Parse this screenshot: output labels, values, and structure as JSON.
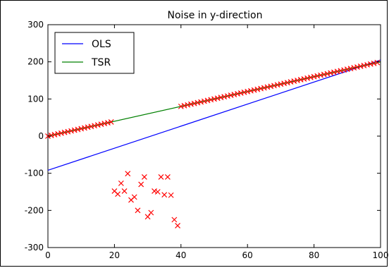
{
  "chart_data": {
    "type": "line",
    "title": "Noise in y-direction",
    "xlabel": "",
    "ylabel": "",
    "xlim": [
      0,
      100
    ],
    "ylim": [
      -300,
      300
    ],
    "xticks": [
      0,
      20,
      40,
      60,
      80,
      100
    ],
    "yticks": [
      -300,
      -200,
      -100,
      0,
      100,
      200,
      300
    ],
    "grid": false,
    "legend_position": "top-left",
    "lines": [
      {
        "name": "OLS",
        "color": "#0000ff",
        "x": [
          0,
          100
        ],
        "y": [
          -92,
          205
        ]
      },
      {
        "name": "TSR",
        "color": "#008000",
        "x": [
          0,
          100
        ],
        "y": [
          0,
          200
        ]
      }
    ],
    "scatter": {
      "marker": "x",
      "color": "#ff0000",
      "points": [
        [
          0,
          0
        ],
        [
          1,
          2
        ],
        [
          2,
          4
        ],
        [
          3,
          6
        ],
        [
          4,
          8
        ],
        [
          5,
          10
        ],
        [
          6,
          12
        ],
        [
          7,
          14
        ],
        [
          8,
          16
        ],
        [
          9,
          18
        ],
        [
          10,
          20
        ],
        [
          11,
          22
        ],
        [
          12,
          24
        ],
        [
          13,
          26
        ],
        [
          14,
          28
        ],
        [
          15,
          30
        ],
        [
          16,
          32
        ],
        [
          17,
          34
        ],
        [
          18,
          36
        ],
        [
          19,
          38
        ],
        [
          20,
          -148
        ],
        [
          21,
          -156
        ],
        [
          22,
          -127
        ],
        [
          23,
          -148
        ],
        [
          24,
          -101
        ],
        [
          25,
          -172
        ],
        [
          26,
          -164
        ],
        [
          27,
          -200
        ],
        [
          28,
          -130
        ],
        [
          29,
          -110
        ],
        [
          30,
          -217
        ],
        [
          31,
          -206
        ],
        [
          32,
          -148
        ],
        [
          33,
          -150
        ],
        [
          34,
          -110
        ],
        [
          35,
          -158
        ],
        [
          36,
          -110
        ],
        [
          37,
          -159
        ],
        [
          38,
          -225
        ],
        [
          39,
          -241
        ],
        [
          40,
          80
        ],
        [
          41,
          82
        ],
        [
          42,
          84
        ],
        [
          43,
          86
        ],
        [
          44,
          88
        ],
        [
          45,
          90
        ],
        [
          46,
          92
        ],
        [
          47,
          94
        ],
        [
          48,
          96
        ],
        [
          49,
          98
        ],
        [
          50,
          100
        ],
        [
          51,
          102
        ],
        [
          52,
          104
        ],
        [
          53,
          106
        ],
        [
          54,
          108
        ],
        [
          55,
          110
        ],
        [
          56,
          112
        ],
        [
          57,
          114
        ],
        [
          58,
          116
        ],
        [
          59,
          118
        ],
        [
          60,
          120
        ],
        [
          61,
          122
        ],
        [
          62,
          124
        ],
        [
          63,
          126
        ],
        [
          64,
          128
        ],
        [
          65,
          130
        ],
        [
          66,
          132
        ],
        [
          67,
          134
        ],
        [
          68,
          136
        ],
        [
          69,
          138
        ],
        [
          70,
          140
        ],
        [
          71,
          142
        ],
        [
          72,
          144
        ],
        [
          73,
          146
        ],
        [
          74,
          148
        ],
        [
          75,
          150
        ],
        [
          76,
          152
        ],
        [
          77,
          154
        ],
        [
          78,
          156
        ],
        [
          79,
          158
        ],
        [
          80,
          160
        ],
        [
          81,
          162
        ],
        [
          82,
          164
        ],
        [
          83,
          166
        ],
        [
          84,
          168
        ],
        [
          85,
          170
        ],
        [
          86,
          172
        ],
        [
          87,
          174
        ],
        [
          88,
          176
        ],
        [
          89,
          178
        ],
        [
          90,
          180
        ],
        [
          91,
          182
        ],
        [
          92,
          184
        ],
        [
          93,
          186
        ],
        [
          94,
          188
        ],
        [
          95,
          190
        ],
        [
          96,
          192
        ],
        [
          97,
          194
        ],
        [
          98,
          196
        ],
        [
          99,
          198
        ]
      ]
    }
  }
}
